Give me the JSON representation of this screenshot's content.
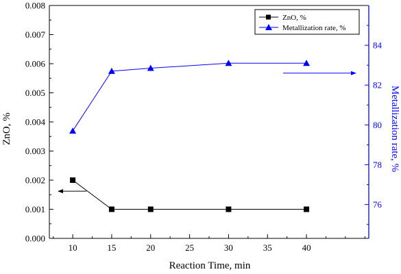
{
  "chart_data": {
    "type": "line",
    "x": [
      10,
      15,
      20,
      30,
      40
    ],
    "xlabel": "Reaction Time, min",
    "xlim": [
      7,
      48
    ],
    "xticks": [
      10,
      15,
      20,
      25,
      30,
      35,
      40
    ],
    "series": [
      {
        "name": "ZnO, %",
        "axis": "left",
        "marker": "square",
        "color": "#000000",
        "values": [
          0.002,
          0.001,
          0.001,
          0.001,
          0.001
        ]
      },
      {
        "name": "Metallization rate, %",
        "axis": "right",
        "marker": "triangle",
        "color": "#0000ff",
        "values": [
          79.7,
          82.7,
          82.85,
          83.1,
          83.1
        ]
      }
    ],
    "y_left": {
      "label": "ZnO, %",
      "range": [
        0,
        0.008
      ],
      "ticks": [
        "0.000",
        "0.001",
        "0.002",
        "0.003",
        "0.004",
        "0.005",
        "0.006",
        "0.007",
        "0.008"
      ]
    },
    "y_right": {
      "label": "Metallization rate, %",
      "range": [
        74.3,
        86
      ],
      "ticks": [
        "76",
        "78",
        "80",
        "82",
        "84"
      ]
    },
    "legend_position": "top-right",
    "annotations": [
      {
        "type": "arrow",
        "direction": "left",
        "series": "ZnO, %",
        "at_x": 10,
        "at_y_left": 0.00162
      },
      {
        "type": "arrow",
        "direction": "right",
        "series": "Metallization rate, %",
        "at_x": 37,
        "at_y_right": 82.6
      }
    ],
    "grid": false
  }
}
